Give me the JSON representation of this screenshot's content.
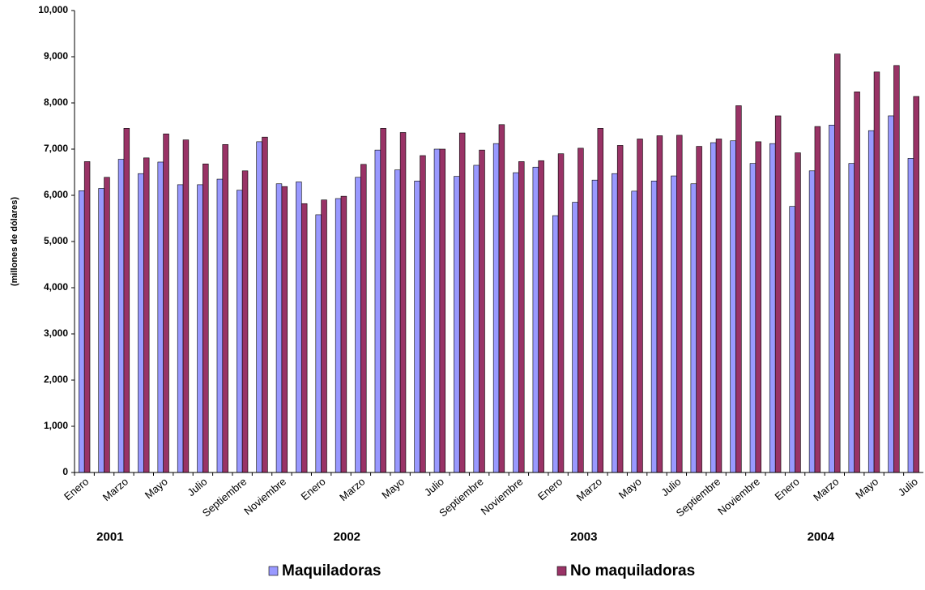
{
  "chart_data": {
    "type": "bar",
    "y_label": "(millones de dólares)",
    "categories": [
      "Enero",
      null,
      "Marzo",
      null,
      "Mayo",
      null,
      "Julio",
      null,
      "Septiembre",
      null,
      "Noviembre",
      null,
      "Enero",
      null,
      "Marzo",
      null,
      "Mayo",
      null,
      "Julio",
      null,
      "Septiembre",
      null,
      "Noviembre",
      null,
      "Enero",
      null,
      "Marzo",
      null,
      "Mayo",
      null,
      "Julio",
      null,
      "Septiembre",
      null,
      "Noviembre",
      null,
      "Enero",
      null,
      "Marzo",
      null,
      "Mayo",
      null,
      "Julio"
    ],
    "year_labels": [
      "2001",
      "2002",
      "2003",
      "2004"
    ],
    "series": [
      {
        "name": "Maquiladoras",
        "color": "#9999ff",
        "values": [
          6100,
          6150,
          6780,
          6470,
          6720,
          6230,
          6230,
          6350,
          6110,
          7160,
          6250,
          6290,
          5580,
          5930,
          6390,
          6980,
          6550,
          6310,
          7000,
          6410,
          6650,
          7120,
          6490,
          6610,
          5560,
          5850,
          6330,
          6470,
          6090,
          6310,
          6420,
          6250,
          7140,
          7180,
          6690,
          7120,
          5760,
          6530,
          7520,
          6690,
          7400,
          7720,
          6800
        ]
      },
      {
        "name": "No maquiladoras",
        "color": "#993366",
        "values": [
          6730,
          6390,
          7450,
          6810,
          7330,
          7200,
          6680,
          7100,
          6530,
          7260,
          6190,
          5820,
          5900,
          5980,
          6670,
          7450,
          7360,
          6860,
          7000,
          7350,
          6980,
          7530,
          6730,
          6750,
          6900,
          7020,
          7450,
          7080,
          7220,
          7290,
          7300,
          7060,
          7220,
          7940,
          7160,
          7720,
          6920,
          7490,
          9060,
          8240,
          8670,
          8810,
          8140
        ]
      }
    ],
    "ylim": [
      0,
      10000
    ],
    "yticks": [
      0,
      {
        "value": 1000,
        "label": "1,000"
      },
      {
        "value": 2000,
        "label": "2,000"
      },
      {
        "value": 3000,
        "label": "3,000"
      },
      {
        "value": 4000,
        "label": "4,000"
      },
      {
        "value": 5000,
        "label": "5,000"
      },
      {
        "value": 6000,
        "label": "6,000"
      },
      {
        "value": 7000,
        "label": "7,000"
      },
      {
        "value": 8000,
        "label": "8,000"
      },
      {
        "value": 9000,
        "label": "9,000"
      },
      {
        "value": 10000,
        "label": "10,000"
      }
    ],
    "grid": false,
    "legend": "bottom"
  }
}
